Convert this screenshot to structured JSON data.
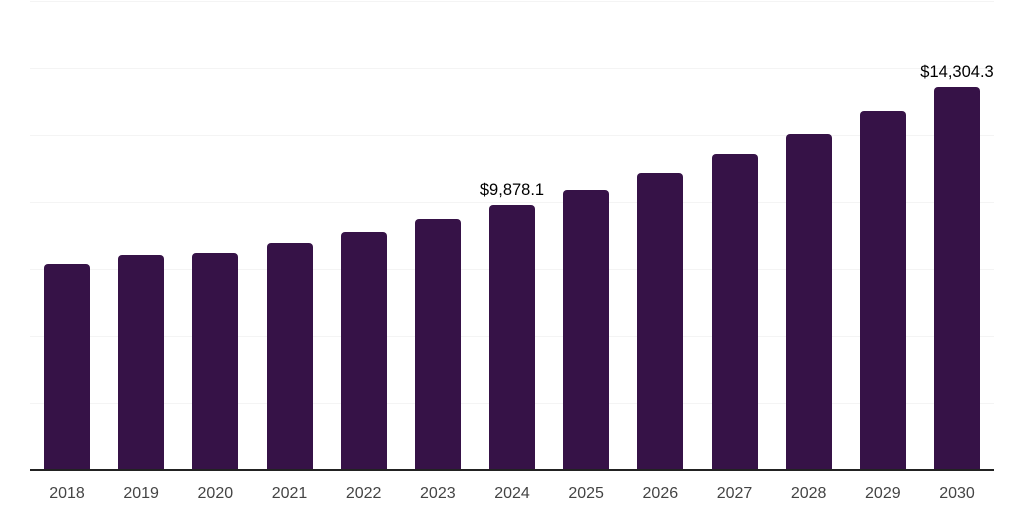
{
  "chart_data": {
    "type": "bar",
    "title": "",
    "xlabel": "",
    "ylabel": "",
    "categories": [
      "2018",
      "2019",
      "2020",
      "2021",
      "2022",
      "2023",
      "2024",
      "2025",
      "2026",
      "2027",
      "2028",
      "2029",
      "2030"
    ],
    "values": [
      7690,
      8025,
      8100,
      8470,
      8880,
      9360,
      9878.1,
      10450,
      11070,
      11780,
      12530,
      13400,
      14304.3
    ],
    "labeled_points": [
      {
        "category": "2024",
        "label": "$9,878.1"
      },
      {
        "category": "2030",
        "label": "$14,304.3"
      }
    ],
    "ylim": [
      0,
      17500
    ],
    "gridline_step": 2500,
    "grid": "horizontal-only",
    "legend": "none",
    "y_axis_labels_visible": false,
    "colors": {
      "bar": "#361247",
      "axis_line": "#222222",
      "gridline": "#f4f4f4",
      "tick_label": "#444444",
      "data_label": "#000000",
      "background": "#ffffff"
    }
  }
}
